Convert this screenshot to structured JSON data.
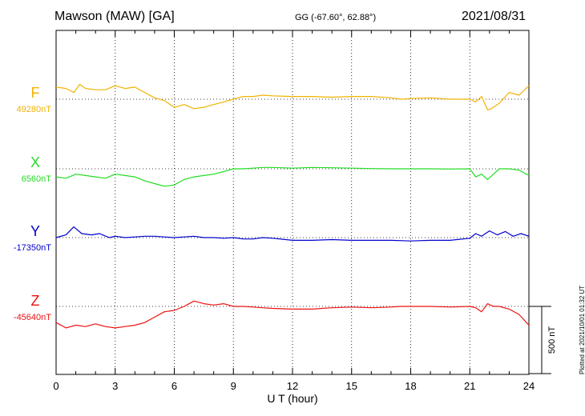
{
  "header": {
    "station": "Mawson (MAW)  [GA]",
    "coords": "GG (-67.60°,  62.88°)",
    "date": "2021/08/31"
  },
  "footer_note": "Plotted at 2021/10/01 01:32 UT",
  "chart_data": {
    "type": "line",
    "title": "Mawson (MAW)  [GA]",
    "xlabel": "U T (hour)",
    "xlim": [
      0,
      24
    ],
    "xticks": [
      0,
      3,
      6,
      9,
      12,
      15,
      18,
      21,
      24
    ],
    "xtick_labels": [
      "0",
      "3",
      "6",
      "9",
      "12",
      "15",
      "18",
      "21",
      "24"
    ],
    "grid": true,
    "scale_bar": {
      "label": "500 nT",
      "value": 500
    },
    "colors": {
      "F": "#f2b200",
      "X": "#22dd22",
      "Y": "#0000cc",
      "Z": "#ee1111"
    },
    "series": [
      {
        "name": "F",
        "baseline_label": "49280nT",
        "baseline": 49280,
        "x": [
          0,
          0.5,
          0.9,
          1.2,
          1.5,
          2.0,
          2.5,
          3.0,
          3.5,
          4.0,
          4.5,
          5.0,
          5.5,
          6.0,
          6.5,
          7.0,
          7.5,
          8.0,
          8.5,
          9.0,
          9.5,
          10.0,
          10.5,
          11.0,
          12.0,
          13.0,
          14.0,
          15.0,
          16.0,
          17.0,
          17.5,
          18.0,
          19.0,
          20.0,
          21.0,
          21.3,
          21.6,
          21.9,
          22.1,
          22.5,
          23.0,
          23.5,
          24.0
        ],
        "y": [
          49370,
          49360,
          49330,
          49390,
          49360,
          49350,
          49350,
          49380,
          49360,
          49370,
          49330,
          49290,
          49270,
          49220,
          49240,
          49210,
          49220,
          49240,
          49260,
          49280,
          49300,
          49300,
          49310,
          49305,
          49300,
          49300,
          49295,
          49300,
          49300,
          49290,
          49280,
          49285,
          49290,
          49280,
          49280,
          49260,
          49300,
          49200,
          49210,
          49250,
          49330,
          49310,
          49380
        ]
      },
      {
        "name": "X",
        "baseline_label": "6560nT",
        "baseline": 6560,
        "x": [
          0,
          0.5,
          1.0,
          1.5,
          2.0,
          2.5,
          3.0,
          3.5,
          4.0,
          4.5,
          5.0,
          5.5,
          6.0,
          6.5,
          7.0,
          7.5,
          8.0,
          8.5,
          9.0,
          9.5,
          10.0,
          10.5,
          11.0,
          12.0,
          13.0,
          14.0,
          15.0,
          16.0,
          17.0,
          18.0,
          19.0,
          20.0,
          21.0,
          21.3,
          21.6,
          21.9,
          22.2,
          22.5,
          23.0,
          23.5,
          24.0
        ],
        "y": [
          6500,
          6490,
          6520,
          6510,
          6500,
          6490,
          6520,
          6510,
          6500,
          6470,
          6450,
          6430,
          6440,
          6480,
          6500,
          6510,
          6520,
          6540,
          6560,
          6560,
          6565,
          6570,
          6570,
          6565,
          6570,
          6568,
          6565,
          6562,
          6560,
          6560,
          6560,
          6558,
          6560,
          6500,
          6520,
          6480,
          6520,
          6560,
          6560,
          6550,
          6510
        ]
      },
      {
        "name": "Y",
        "baseline_label": "-17350nT",
        "baseline": -17350,
        "x": [
          0,
          0.5,
          0.9,
          1.3,
          1.8,
          2.2,
          2.7,
          3.0,
          3.5,
          4.0,
          4.5,
          5.0,
          5.5,
          6.0,
          6.5,
          7.0,
          7.5,
          8.0,
          8.5,
          9.0,
          9.5,
          10.0,
          10.5,
          11.0,
          12.0,
          13.0,
          14.0,
          15.0,
          16.0,
          17.0,
          18.0,
          19.0,
          20.0,
          21.0,
          21.3,
          21.6,
          22.0,
          22.4,
          22.8,
          23.2,
          23.6,
          24.0
        ],
        "y": [
          -17350,
          -17330,
          -17270,
          -17320,
          -17330,
          -17320,
          -17350,
          -17340,
          -17350,
          -17345,
          -17340,
          -17340,
          -17345,
          -17350,
          -17345,
          -17340,
          -17350,
          -17350,
          -17355,
          -17350,
          -17360,
          -17360,
          -17350,
          -17355,
          -17370,
          -17370,
          -17365,
          -17370,
          -17370,
          -17370,
          -17375,
          -17370,
          -17370,
          -17355,
          -17320,
          -17340,
          -17300,
          -17330,
          -17305,
          -17340,
          -17320,
          -17340
        ]
      },
      {
        "name": "Z",
        "baseline_label": "-45640nT",
        "baseline": -45640,
        "x": [
          0,
          0.5,
          1.0,
          1.5,
          2.0,
          2.5,
          3.0,
          3.5,
          4.0,
          4.5,
          5.0,
          5.5,
          6.0,
          6.5,
          7.0,
          7.5,
          8.0,
          8.5,
          9.0,
          9.5,
          10.0,
          10.5,
          11.0,
          12.0,
          13.0,
          14.0,
          15.0,
          16.0,
          17.0,
          17.5,
          18.0,
          19.0,
          20.0,
          21.0,
          21.3,
          21.6,
          21.9,
          22.2,
          22.5,
          23.0,
          23.5,
          24.0
        ],
        "y": [
          -45760,
          -45800,
          -45780,
          -45790,
          -45770,
          -45790,
          -45800,
          -45790,
          -45780,
          -45760,
          -45720,
          -45680,
          -45670,
          -45640,
          -45600,
          -45620,
          -45630,
          -45620,
          -45640,
          -45640,
          -45645,
          -45650,
          -45655,
          -45660,
          -45660,
          -45650,
          -45645,
          -45650,
          -45645,
          -45640,
          -45640,
          -45640,
          -45645,
          -45640,
          -45650,
          -45680,
          -45620,
          -45640,
          -45640,
          -45660,
          -45700,
          -45780
        ]
      }
    ]
  }
}
